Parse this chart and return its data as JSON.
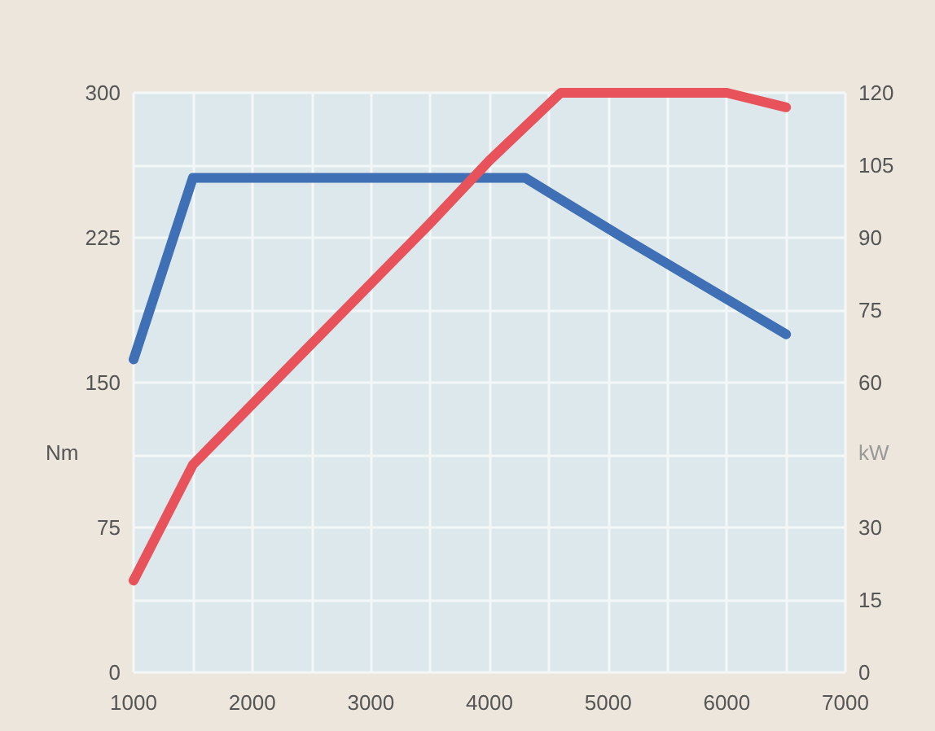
{
  "chart_data": {
    "type": "line",
    "ylabel": "Nm",
    "y2label": "kW",
    "series": [
      {
        "color": "#3f6fb5",
        "x": [
          1000,
          1500,
          4300,
          5100,
          6500
        ],
        "values": [
          162,
          256,
          256,
          226,
          175
        ]
      },
      {
        "color": "#e8525a",
        "axis": "y2",
        "x": [
          1000,
          1500,
          2500,
          3500,
          4000,
          4600,
          6000,
          6500
        ],
        "values": [
          19,
          43,
          68,
          93,
          106,
          120,
          120,
          117
        ]
      }
    ],
    "xlim": [
      1000,
      7000
    ],
    "xticks": [
      1000,
      {
        "value": 1500,
        "label": null
      },
      2000,
      {
        "value": 2500,
        "label": null
      },
      3000,
      {
        "value": 3500,
        "label": null
      },
      4000,
      {
        "value": 4500,
        "label": null
      },
      5000,
      {
        "value": 5500,
        "label": null
      },
      6000,
      {
        "value": 6500,
        "label": null
      },
      7000
    ],
    "ylim": [
      0,
      300
    ],
    "yticks": [
      0,
      {
        "value": 37.5,
        "label": null
      },
      75,
      {
        "value": 112.5,
        "label": null
      },
      150,
      {
        "value": 187.5,
        "label": null
      },
      225,
      {
        "value": 262.5,
        "label": null
      },
      300
    ],
    "y2lim": [
      0,
      120
    ],
    "y2ticks": [
      0,
      15,
      30,
      {
        "value": 45,
        "label": null
      },
      60,
      75,
      90,
      105,
      120
    ],
    "grid": true,
    "marker": "none",
    "line_style": "solid"
  }
}
